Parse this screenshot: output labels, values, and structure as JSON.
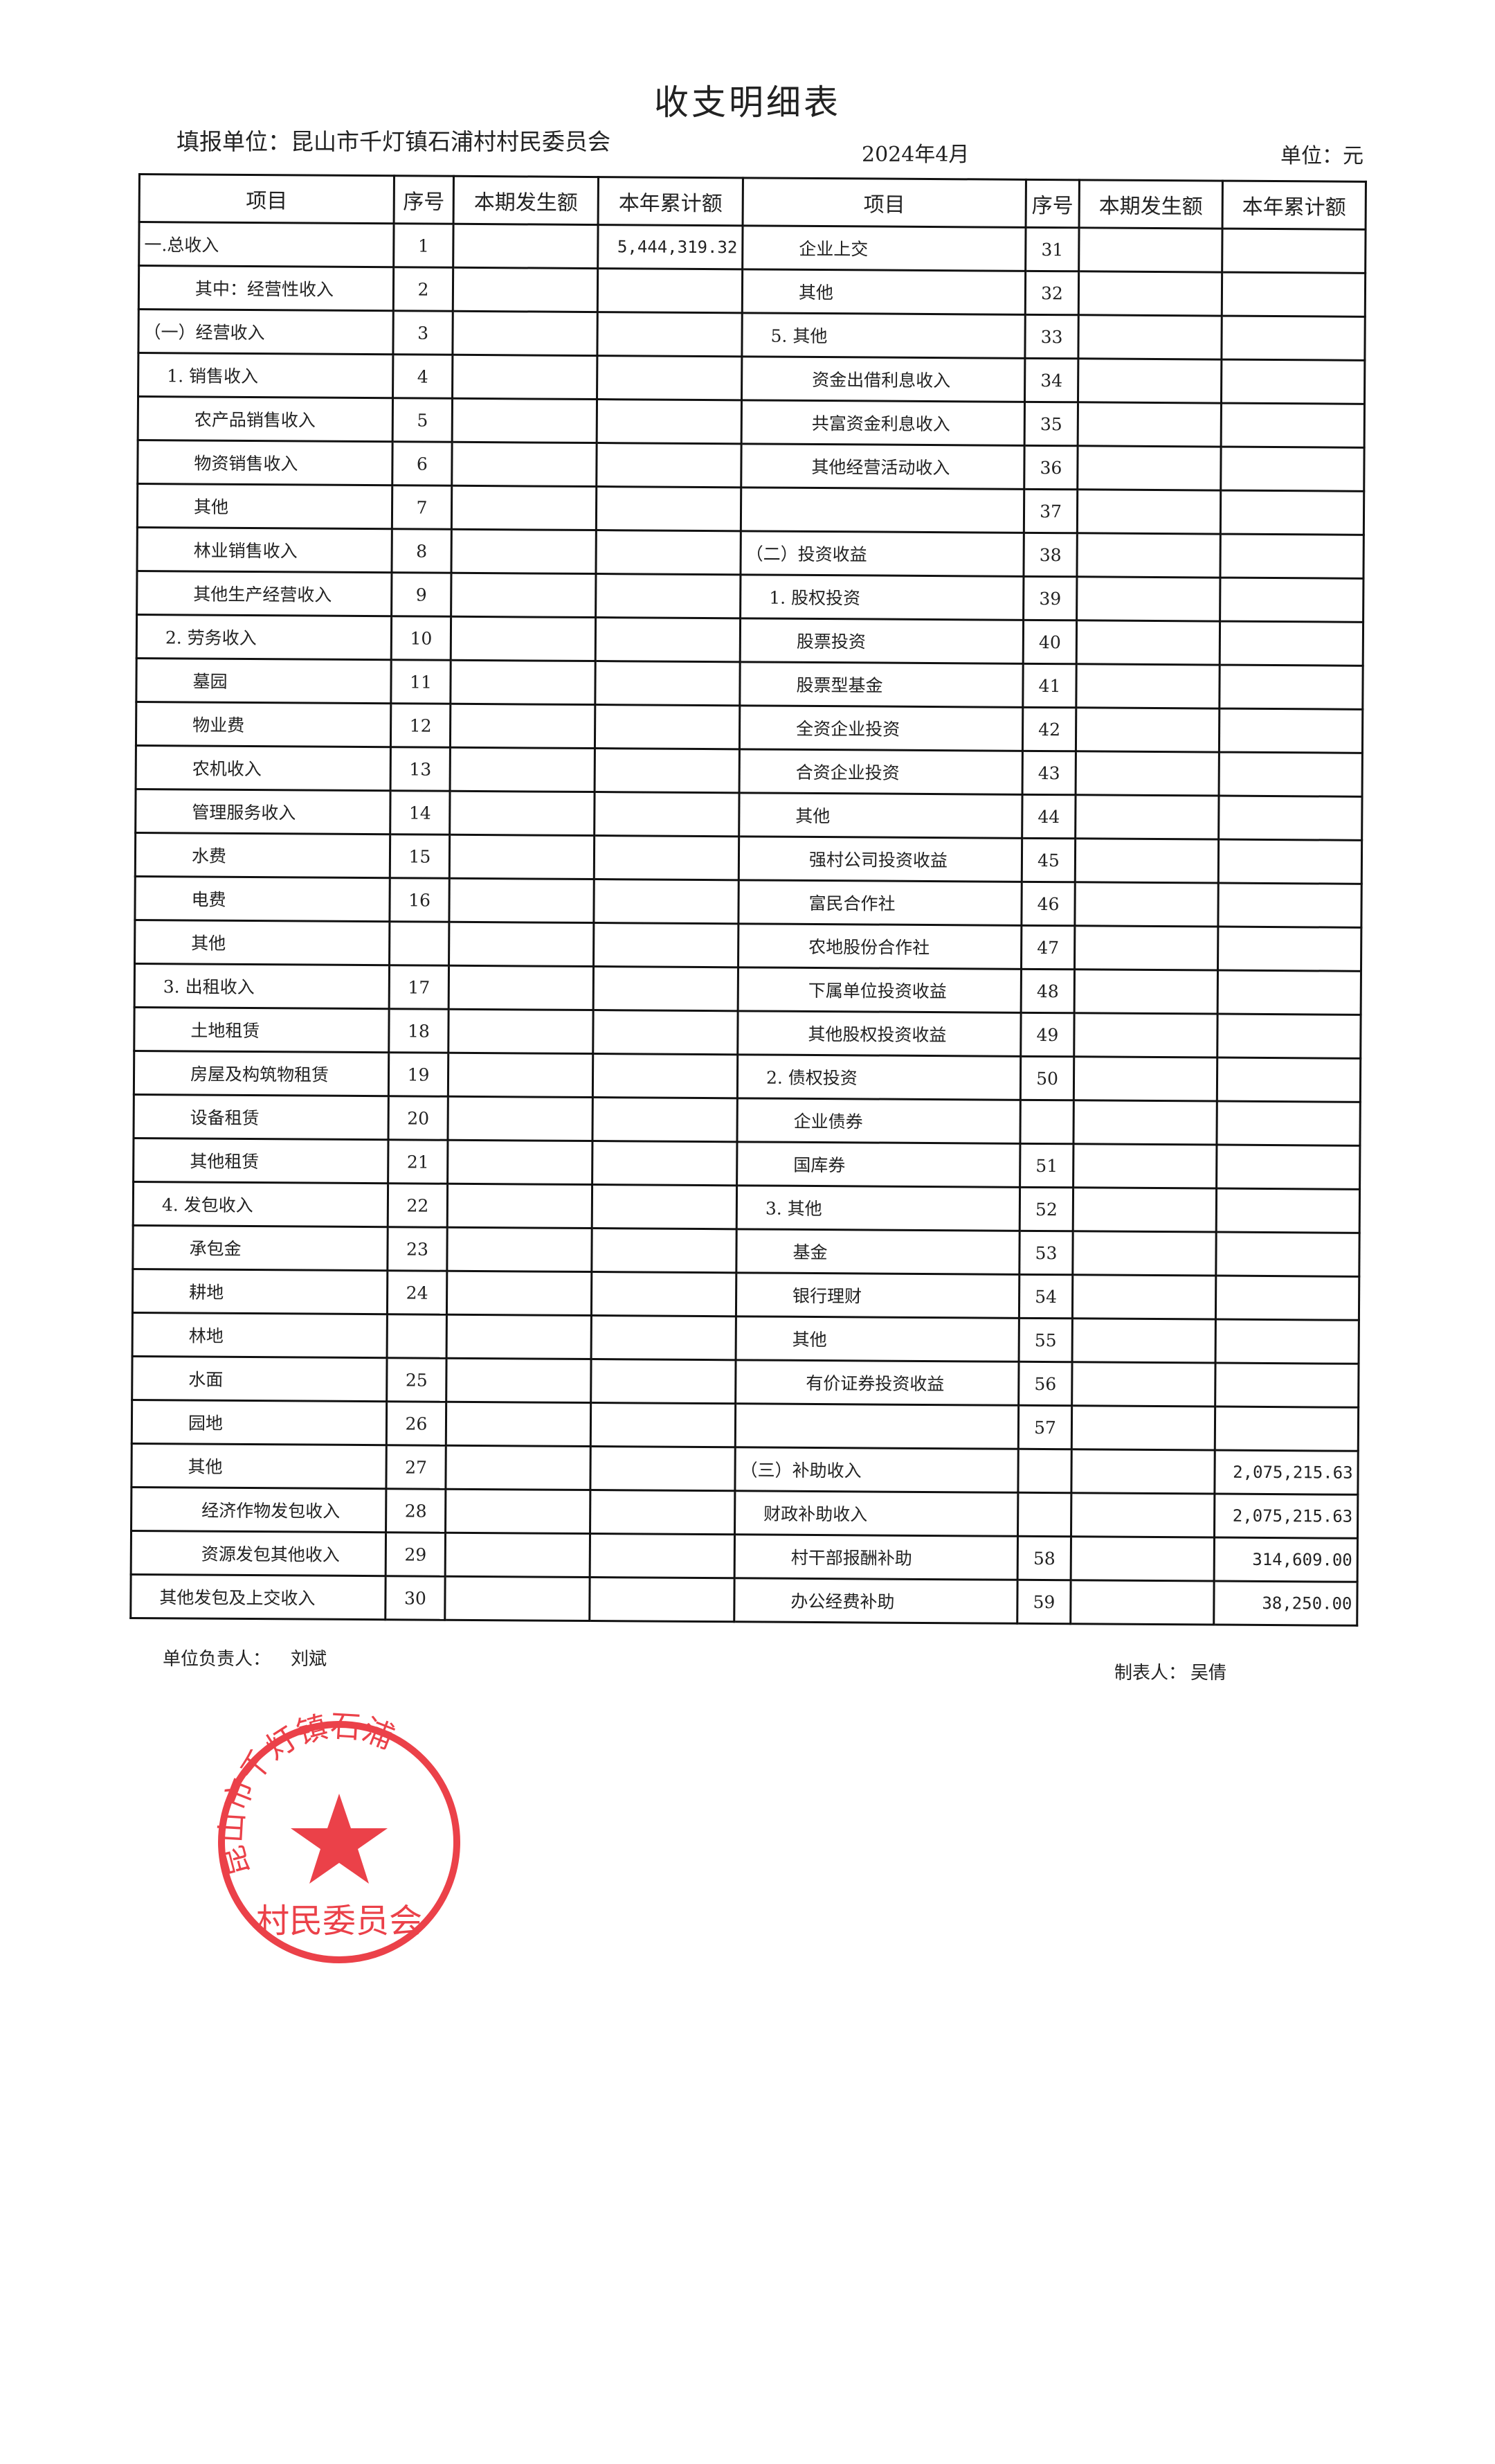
{
  "title": "收支明细表",
  "unit_label": "填报单位：昆山市千灯镇石浦村村民委员会",
  "period": "2024年4月",
  "currency": "单位：元",
  "headers": [
    "项目",
    "序号",
    "本期发生额",
    "本年累计额",
    "项目",
    "序号",
    "本期发生额",
    "本年累计额"
  ],
  "left_rows": [
    {
      "item": "一.总收入",
      "seq": "1",
      "current": "",
      "ytd": "5,444,319.32",
      "indent": 0
    },
    {
      "item": "其中：经营性收入",
      "seq": "2",
      "current": "",
      "ytd": "",
      "indent": 2
    },
    {
      "item": "（一）经营收入",
      "seq": "3",
      "current": "",
      "ytd": "",
      "indent": 0
    },
    {
      "item": "1. 销售收入",
      "seq": "4",
      "current": "",
      "ytd": "",
      "indent": 1
    },
    {
      "item": "农产品销售收入",
      "seq": "5",
      "current": "",
      "ytd": "",
      "indent": 2
    },
    {
      "item": "物资销售收入",
      "seq": "6",
      "current": "",
      "ytd": "",
      "indent": 2
    },
    {
      "item": "其他",
      "seq": "7",
      "current": "",
      "ytd": "",
      "indent": 2
    },
    {
      "item": "林业销售收入",
      "seq": "8",
      "current": "",
      "ytd": "",
      "indent": 2
    },
    {
      "item": "其他生产经营收入",
      "seq": "9",
      "current": "",
      "ytd": "",
      "indent": 2
    },
    {
      "item": "2. 劳务收入",
      "seq": "10",
      "current": "",
      "ytd": "",
      "indent": 1
    },
    {
      "item": "墓园",
      "seq": "11",
      "current": "",
      "ytd": "",
      "indent": 2
    },
    {
      "item": "物业费",
      "seq": "12",
      "current": "",
      "ytd": "",
      "indent": 2
    },
    {
      "item": "农机收入",
      "seq": "13",
      "current": "",
      "ytd": "",
      "indent": 2
    },
    {
      "item": "管理服务收入",
      "seq": "14",
      "current": "",
      "ytd": "",
      "indent": 2
    },
    {
      "item": "水费",
      "seq": "15",
      "current": "",
      "ytd": "",
      "indent": 2
    },
    {
      "item": "电费",
      "seq": "16",
      "current": "",
      "ytd": "",
      "indent": 2
    },
    {
      "item": "其他",
      "seq": "",
      "current": "",
      "ytd": "",
      "indent": 2
    },
    {
      "item": "3. 出租收入",
      "seq": "17",
      "current": "",
      "ytd": "",
      "indent": 1
    },
    {
      "item": "土地租赁",
      "seq": "18",
      "current": "",
      "ytd": "",
      "indent": 2
    },
    {
      "item": "房屋及构筑物租赁",
      "seq": "19",
      "current": "",
      "ytd": "",
      "indent": 2
    },
    {
      "item": "设备租赁",
      "seq": "20",
      "current": "",
      "ytd": "",
      "indent": 2
    },
    {
      "item": "其他租赁",
      "seq": "21",
      "current": "",
      "ytd": "",
      "indent": 2
    },
    {
      "item": "4. 发包收入",
      "seq": "22",
      "current": "",
      "ytd": "",
      "indent": 1
    },
    {
      "item": "承包金",
      "seq": "23",
      "current": "",
      "ytd": "",
      "indent": 2
    },
    {
      "item": "耕地",
      "seq": "24",
      "current": "",
      "ytd": "",
      "indent": 2
    },
    {
      "item": "林地",
      "seq": "",
      "current": "",
      "ytd": "",
      "indent": 2
    },
    {
      "item": "水面",
      "seq": "25",
      "current": "",
      "ytd": "",
      "indent": 2
    },
    {
      "item": "园地",
      "seq": "26",
      "current": "",
      "ytd": "",
      "indent": 2
    },
    {
      "item": "其他",
      "seq": "27",
      "current": "",
      "ytd": "",
      "indent": 2
    },
    {
      "item": "经济作物发包收入",
      "seq": "28",
      "current": "",
      "ytd": "",
      "indent": 3
    },
    {
      "item": "资源发包其他收入",
      "seq": "29",
      "current": "",
      "ytd": "",
      "indent": 3
    },
    {
      "item": "其他发包及上交收入",
      "seq": "30",
      "current": "",
      "ytd": "",
      "indent": 1
    }
  ],
  "right_rows": [
    {
      "item": "企业上交",
      "seq": "31",
      "current": "",
      "ytd": "",
      "indent": 2
    },
    {
      "item": "其他",
      "seq": "32",
      "current": "",
      "ytd": "",
      "indent": 2
    },
    {
      "item": "5. 其他",
      "seq": "33",
      "current": "",
      "ytd": "",
      "indent": 1
    },
    {
      "item": "资金出借利息收入",
      "seq": "34",
      "current": "",
      "ytd": "",
      "indent": 3
    },
    {
      "item": "共富资金利息收入",
      "seq": "35",
      "current": "",
      "ytd": "",
      "indent": 3
    },
    {
      "item": "其他经营活动收入",
      "seq": "36",
      "current": "",
      "ytd": "",
      "indent": 3
    },
    {
      "item": "",
      "seq": "37",
      "current": "",
      "ytd": "",
      "indent": 0
    },
    {
      "item": "（二）投资收益",
      "seq": "38",
      "current": "",
      "ytd": "",
      "indent": 0
    },
    {
      "item": "1. 股权投资",
      "seq": "39",
      "current": "",
      "ytd": "",
      "indent": 1
    },
    {
      "item": "股票投资",
      "seq": "40",
      "current": "",
      "ytd": "",
      "indent": 2
    },
    {
      "item": "股票型基金",
      "seq": "41",
      "current": "",
      "ytd": "",
      "indent": 2
    },
    {
      "item": "全资企业投资",
      "seq": "42",
      "current": "",
      "ytd": "",
      "indent": 2
    },
    {
      "item": "合资企业投资",
      "seq": "43",
      "current": "",
      "ytd": "",
      "indent": 2
    },
    {
      "item": "其他",
      "seq": "44",
      "current": "",
      "ytd": "",
      "indent": 2
    },
    {
      "item": "强村公司投资收益",
      "seq": "45",
      "current": "",
      "ytd": "",
      "indent": 3
    },
    {
      "item": "富民合作社",
      "seq": "46",
      "current": "",
      "ytd": "",
      "indent": 3
    },
    {
      "item": "农地股份合作社",
      "seq": "47",
      "current": "",
      "ytd": "",
      "indent": 3
    },
    {
      "item": "下属单位投资收益",
      "seq": "48",
      "current": "",
      "ytd": "",
      "indent": 3
    },
    {
      "item": "其他股权投资收益",
      "seq": "49",
      "current": "",
      "ytd": "",
      "indent": 3
    },
    {
      "item": "2. 债权投资",
      "seq": "50",
      "current": "",
      "ytd": "",
      "indent": 1
    },
    {
      "item": "企业债券",
      "seq": "",
      "current": "",
      "ytd": "",
      "indent": 2
    },
    {
      "item": "国库券",
      "seq": "51",
      "current": "",
      "ytd": "",
      "indent": 2
    },
    {
      "item": "3. 其他",
      "seq": "52",
      "current": "",
      "ytd": "",
      "indent": 1
    },
    {
      "item": "基金",
      "seq": "53",
      "current": "",
      "ytd": "",
      "indent": 2
    },
    {
      "item": "银行理财",
      "seq": "54",
      "current": "",
      "ytd": "",
      "indent": 2
    },
    {
      "item": "其他",
      "seq": "55",
      "current": "",
      "ytd": "",
      "indent": 2
    },
    {
      "item": "有价证券投资收益",
      "seq": "56",
      "current": "",
      "ytd": "",
      "indent": 3
    },
    {
      "item": "",
      "seq": "57",
      "current": "",
      "ytd": "",
      "indent": 0
    },
    {
      "item": "（三）补助收入",
      "seq": "",
      "current": "",
      "ytd": "2,075,215.63",
      "indent": 0
    },
    {
      "item": "财政补助收入",
      "seq": "",
      "current": "",
      "ytd": "2,075,215.63",
      "indent": 1
    },
    {
      "item": "村干部报酬补助",
      "seq": "58",
      "current": "",
      "ytd": "314,609.00",
      "indent": 2
    },
    {
      "item": "办公经费补助",
      "seq": "59",
      "current": "",
      "ytd": "38,250.00",
      "indent": 2
    }
  ],
  "footer": {
    "head_label": "单位负责人：",
    "head_name": "刘斌",
    "preparer_label": "制表人：",
    "preparer_name": "吴倩"
  },
  "stamp": {
    "text": "昆山市千灯镇石浦村村民委员会",
    "color": "#e8202a"
  }
}
